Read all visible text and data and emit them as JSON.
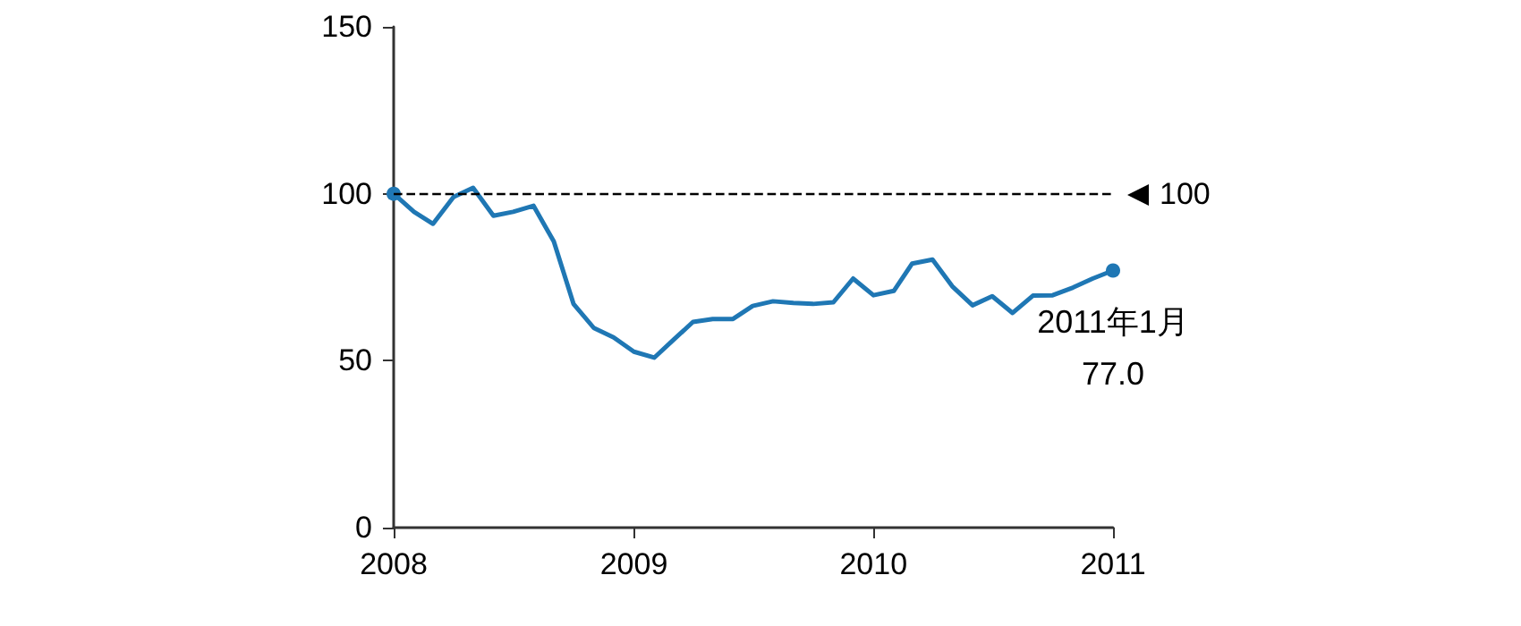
{
  "chart_data": {
    "type": "line",
    "x": [
      "2008-01",
      "2008-02",
      "2008-03",
      "2008-04",
      "2008-05",
      "2008-06",
      "2008-07",
      "2008-08",
      "2008-09",
      "2008-10",
      "2008-11",
      "2008-12",
      "2009-01",
      "2009-02",
      "2009-03",
      "2009-04",
      "2009-05",
      "2009-06",
      "2009-07",
      "2009-08",
      "2009-09",
      "2009-10",
      "2009-11",
      "2009-12",
      "2010-01",
      "2010-02",
      "2010-03",
      "2010-04",
      "2010-05",
      "2010-06",
      "2010-07",
      "2010-08",
      "2010-09",
      "2010-10",
      "2010-11",
      "2010-12",
      "2011-01"
    ],
    "series": [
      {
        "color": "#1f77b4",
        "values": [
          100,
          94.6,
          91,
          99,
          101.8,
          93.4,
          94.6,
          96.4,
          85.7,
          67,
          59.8,
          57,
          52.7,
          50.9,
          56,
          61.6,
          62.5,
          62.5,
          66.4,
          67.8,
          67.3,
          67,
          67.5,
          74.6,
          69.6,
          70.9,
          79.1,
          80.3,
          72.3,
          66.6,
          69.3,
          64.3,
          69.5,
          69.6,
          71.9,
          74.6,
          77.0
        ]
      }
    ],
    "xlim": [
      "2008-01",
      "2011-01"
    ],
    "xticks": [
      {
        "value": "2008-01",
        "label": "2008"
      },
      {
        "value": "2009-01",
        "label": "2009"
      },
      {
        "value": "2010-01",
        "label": "2010"
      },
      {
        "value": "2011-01",
        "label": "2011"
      }
    ],
    "ylim": [
      0,
      150
    ],
    "yticks": [
      0,
      50,
      100,
      150
    ],
    "ref_lines": [
      {
        "axis": "y",
        "value": 100,
        "label": "100",
        "color": "#000000",
        "line_style": "dashed"
      }
    ],
    "annotations": [
      {
        "text": "2011年1月\n77.0",
        "x": "2011-01",
        "y": 77.0
      }
    ],
    "grid": false
  }
}
